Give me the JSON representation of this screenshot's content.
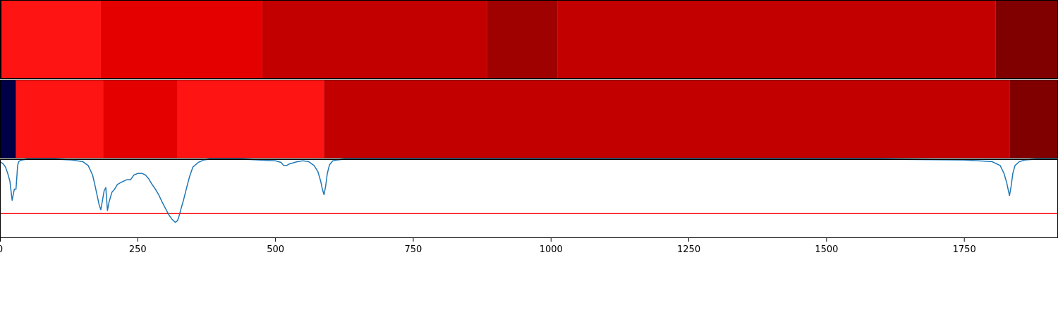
{
  "chart_data": {
    "type": "heatmap",
    "x_range": [
      0,
      1920
    ],
    "x_ticks": [
      0,
      250,
      500,
      750,
      1000,
      1250,
      1500,
      1750
    ],
    "grid": false,
    "legend": "none",
    "heatmap_rows": [
      {
        "segments": [
          {
            "start": 0,
            "end": 3,
            "color": "#000000"
          },
          {
            "start": 3,
            "end": 183,
            "color": "#ff1414"
          },
          {
            "start": 183,
            "end": 476,
            "color": "#e50000"
          },
          {
            "start": 476,
            "end": 884,
            "color": "#c30000"
          },
          {
            "start": 884,
            "end": 1012,
            "color": "#9f0000"
          },
          {
            "start": 1012,
            "end": 1807,
            "color": "#c30000"
          },
          {
            "start": 1807,
            "end": 1920,
            "color": "#800000"
          }
        ]
      },
      {
        "segments": [
          {
            "start": 0,
            "end": 29,
            "color": "#000046"
          },
          {
            "start": 29,
            "end": 187,
            "color": "#ff1414"
          },
          {
            "start": 187,
            "end": 322,
            "color": "#e50000"
          },
          {
            "start": 322,
            "end": 588,
            "color": "#ff1414"
          },
          {
            "start": 588,
            "end": 1832,
            "color": "#c30000"
          },
          {
            "start": 1832,
            "end": 1920,
            "color": "#800000"
          }
        ]
      }
    ],
    "line_panel": {
      "y_range": [
        0,
        1
      ],
      "threshold": 0.31,
      "threshold_color": "#ff0000",
      "line_color": "#1f77b4",
      "x": [
        0,
        6,
        10,
        14,
        18,
        22,
        26,
        29,
        32,
        34,
        36,
        40,
        50,
        70,
        100,
        130,
        150,
        160,
        168,
        172,
        176,
        180,
        183,
        186,
        189,
        192,
        195,
        198,
        203,
        208,
        213,
        218,
        224,
        230,
        237,
        243,
        250,
        258,
        264,
        270,
        276,
        282,
        288,
        294,
        300,
        306,
        312,
        318,
        322,
        325,
        328,
        333,
        338,
        344,
        350,
        360,
        370,
        380,
        395,
        415,
        440,
        470,
        500,
        510,
        515,
        520,
        525,
        530,
        540,
        550,
        560,
        570,
        577,
        582,
        585,
        588,
        591,
        594,
        598,
        604,
        612,
        625,
        650,
        700,
        800,
        1000,
        1200,
        1400,
        1600,
        1750,
        1800,
        1815,
        1822,
        1827,
        1830,
        1832,
        1835,
        1838,
        1842,
        1850,
        1860,
        1880,
        1920
      ],
      "y": [
        0.97,
        0.94,
        0.9,
        0.82,
        0.72,
        0.48,
        0.62,
        0.62,
        0.92,
        0.97,
        0.98,
        0.99,
        1.0,
        1.0,
        1.0,
        0.99,
        0.97,
        0.92,
        0.8,
        0.68,
        0.55,
        0.42,
        0.36,
        0.48,
        0.6,
        0.64,
        0.35,
        0.46,
        0.58,
        0.62,
        0.68,
        0.7,
        0.72,
        0.74,
        0.74,
        0.8,
        0.82,
        0.82,
        0.8,
        0.75,
        0.68,
        0.62,
        0.55,
        0.46,
        0.38,
        0.3,
        0.24,
        0.2,
        0.22,
        0.28,
        0.36,
        0.48,
        0.62,
        0.78,
        0.9,
        0.96,
        0.99,
        1.0,
        1.0,
        1.0,
        1.0,
        0.99,
        0.98,
        0.96,
        0.92,
        0.92,
        0.94,
        0.95,
        0.97,
        0.98,
        0.97,
        0.92,
        0.84,
        0.72,
        0.62,
        0.55,
        0.66,
        0.82,
        0.93,
        0.98,
        0.99,
        1.0,
        1.0,
        1.0,
        1.0,
        1.0,
        1.0,
        1.0,
        1.0,
        0.99,
        0.97,
        0.92,
        0.82,
        0.7,
        0.6,
        0.54,
        0.66,
        0.82,
        0.92,
        0.97,
        0.99,
        1.0,
        1.0
      ]
    }
  }
}
